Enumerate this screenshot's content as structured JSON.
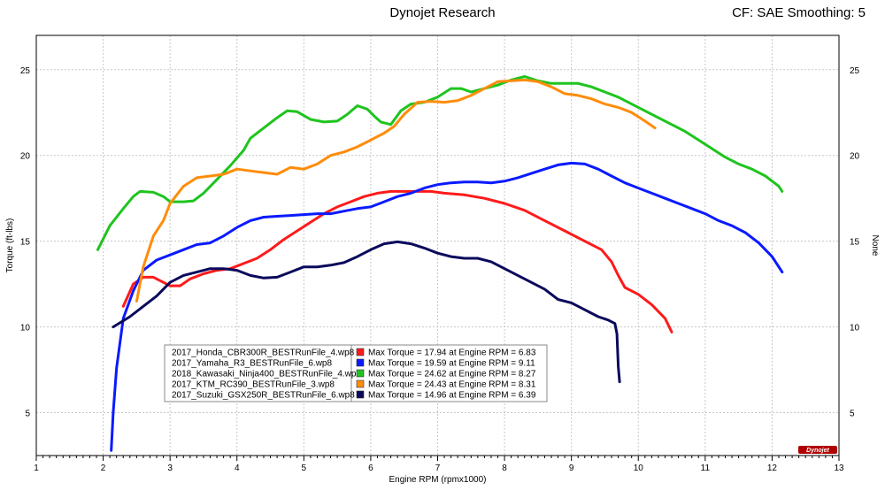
{
  "header": {
    "title": "Dynojet Research",
    "cf": "CF: SAE Smoothing: 5"
  },
  "chart_data": {
    "type": "line",
    "title": "Dynojet Research",
    "xlabel": "Engine RPM (rpmx1000)",
    "ylabel": "Torque (ft-lbs)",
    "y2label": "None",
    "xlim": [
      1,
      13
    ],
    "ylim": [
      2.5,
      27
    ],
    "x_ticks": [
      1,
      2,
      3,
      4,
      5,
      6,
      7,
      8,
      9,
      10,
      11,
      12,
      13
    ],
    "y_ticks": [
      5,
      10,
      15,
      20,
      25
    ],
    "grid": true,
    "legend_position": "bottom-left",
    "logo_text": "Dynojet",
    "series": [
      {
        "name": "2017_Honda_CBR300R_BESTRunFile_4.wp8",
        "color": "#ff1a1a",
        "max_text": "Max Torque = 17.94 at Engine RPM = 6.83",
        "points": [
          [
            2.3,
            11.2
          ],
          [
            2.45,
            12.5
          ],
          [
            2.6,
            12.9
          ],
          [
            2.75,
            12.9
          ],
          [
            2.9,
            12.6
          ],
          [
            3.0,
            12.4
          ],
          [
            3.15,
            12.4
          ],
          [
            3.3,
            12.8
          ],
          [
            3.5,
            13.1
          ],
          [
            3.7,
            13.3
          ],
          [
            3.9,
            13.4
          ],
          [
            4.1,
            13.7
          ],
          [
            4.3,
            14.0
          ],
          [
            4.5,
            14.5
          ],
          [
            4.7,
            15.1
          ],
          [
            4.9,
            15.6
          ],
          [
            5.1,
            16.1
          ],
          [
            5.3,
            16.6
          ],
          [
            5.5,
            17.0
          ],
          [
            5.7,
            17.3
          ],
          [
            5.9,
            17.6
          ],
          [
            6.1,
            17.8
          ],
          [
            6.3,
            17.9
          ],
          [
            6.5,
            17.9
          ],
          [
            6.7,
            17.9
          ],
          [
            6.9,
            17.9
          ],
          [
            7.1,
            17.8
          ],
          [
            7.4,
            17.7
          ],
          [
            7.7,
            17.5
          ],
          [
            8.0,
            17.2
          ],
          [
            8.3,
            16.8
          ],
          [
            8.6,
            16.2
          ],
          [
            8.9,
            15.6
          ],
          [
            9.2,
            15.0
          ],
          [
            9.45,
            14.5
          ],
          [
            9.6,
            13.8
          ],
          [
            9.7,
            13.0
          ],
          [
            9.8,
            12.3
          ],
          [
            10.0,
            11.9
          ],
          [
            10.2,
            11.3
          ],
          [
            10.4,
            10.5
          ],
          [
            10.5,
            9.7
          ]
        ]
      },
      {
        "name": "2017_Yamaha_R3_BESTRunFile_6.wp8",
        "color": "#0a1aff",
        "max_text": "Max Torque = 19.59 at Engine RPM = 9.11",
        "points": [
          [
            2.12,
            2.8
          ],
          [
            2.15,
            5.0
          ],
          [
            2.2,
            7.6
          ],
          [
            2.3,
            10.5
          ],
          [
            2.45,
            12.1
          ],
          [
            2.6,
            13.3
          ],
          [
            2.8,
            13.9
          ],
          [
            3.0,
            14.2
          ],
          [
            3.2,
            14.5
          ],
          [
            3.4,
            14.8
          ],
          [
            3.6,
            14.9
          ],
          [
            3.8,
            15.3
          ],
          [
            4.0,
            15.8
          ],
          [
            4.2,
            16.2
          ],
          [
            4.4,
            16.4
          ],
          [
            4.6,
            16.45
          ],
          [
            4.8,
            16.5
          ],
          [
            5.0,
            16.55
          ],
          [
            5.2,
            16.6
          ],
          [
            5.4,
            16.6
          ],
          [
            5.6,
            16.75
          ],
          [
            5.8,
            16.9
          ],
          [
            6.0,
            17.0
          ],
          [
            6.2,
            17.3
          ],
          [
            6.4,
            17.6
          ],
          [
            6.6,
            17.8
          ],
          [
            6.8,
            18.1
          ],
          [
            7.0,
            18.3
          ],
          [
            7.2,
            18.4
          ],
          [
            7.4,
            18.45
          ],
          [
            7.6,
            18.45
          ],
          [
            7.8,
            18.4
          ],
          [
            8.0,
            18.5
          ],
          [
            8.2,
            18.7
          ],
          [
            8.4,
            18.95
          ],
          [
            8.6,
            19.2
          ],
          [
            8.8,
            19.45
          ],
          [
            9.0,
            19.55
          ],
          [
            9.2,
            19.5
          ],
          [
            9.4,
            19.2
          ],
          [
            9.6,
            18.8
          ],
          [
            9.8,
            18.4
          ],
          [
            10.0,
            18.1
          ],
          [
            10.2,
            17.8
          ],
          [
            10.4,
            17.5
          ],
          [
            10.6,
            17.2
          ],
          [
            10.8,
            16.9
          ],
          [
            11.0,
            16.6
          ],
          [
            11.2,
            16.2
          ],
          [
            11.4,
            15.9
          ],
          [
            11.6,
            15.5
          ],
          [
            11.8,
            14.9
          ],
          [
            12.0,
            14.1
          ],
          [
            12.15,
            13.2
          ]
        ]
      },
      {
        "name": "2018_Kawasaki_Ninja400_BESTRunFile_4.wp8",
        "color": "#1ec41e",
        "max_text": "Max Torque = 24.62 at Engine RPM = 8.27",
        "points": [
          [
            1.92,
            14.5
          ],
          [
            2.1,
            15.9
          ],
          [
            2.3,
            16.9
          ],
          [
            2.45,
            17.6
          ],
          [
            2.55,
            17.9
          ],
          [
            2.75,
            17.85
          ],
          [
            2.9,
            17.6
          ],
          [
            3.0,
            17.3
          ],
          [
            3.2,
            17.3
          ],
          [
            3.35,
            17.35
          ],
          [
            3.5,
            17.8
          ],
          [
            3.7,
            18.6
          ],
          [
            3.9,
            19.4
          ],
          [
            4.1,
            20.3
          ],
          [
            4.2,
            21.0
          ],
          [
            4.4,
            21.6
          ],
          [
            4.6,
            22.2
          ],
          [
            4.75,
            22.6
          ],
          [
            4.9,
            22.55
          ],
          [
            5.1,
            22.1
          ],
          [
            5.3,
            21.95
          ],
          [
            5.5,
            22.0
          ],
          [
            5.65,
            22.4
          ],
          [
            5.8,
            22.9
          ],
          [
            5.95,
            22.7
          ],
          [
            6.05,
            22.3
          ],
          [
            6.15,
            21.95
          ],
          [
            6.3,
            21.8
          ],
          [
            6.45,
            22.6
          ],
          [
            6.6,
            23.0
          ],
          [
            6.8,
            23.1
          ],
          [
            7.0,
            23.4
          ],
          [
            7.2,
            23.9
          ],
          [
            7.35,
            23.9
          ],
          [
            7.5,
            23.7
          ],
          [
            7.7,
            23.9
          ],
          [
            7.9,
            24.1
          ],
          [
            8.1,
            24.4
          ],
          [
            8.3,
            24.6
          ],
          [
            8.5,
            24.35
          ],
          [
            8.7,
            24.2
          ],
          [
            8.9,
            24.2
          ],
          [
            9.1,
            24.2
          ],
          [
            9.3,
            24.0
          ],
          [
            9.5,
            23.7
          ],
          [
            9.7,
            23.4
          ],
          [
            9.9,
            23.0
          ],
          [
            10.1,
            22.6
          ],
          [
            10.3,
            22.2
          ],
          [
            10.5,
            21.8
          ],
          [
            10.7,
            21.4
          ],
          [
            10.9,
            20.9
          ],
          [
            11.1,
            20.4
          ],
          [
            11.3,
            19.9
          ],
          [
            11.5,
            19.5
          ],
          [
            11.7,
            19.2
          ],
          [
            11.9,
            18.8
          ],
          [
            12.1,
            18.2
          ],
          [
            12.15,
            17.9
          ]
        ]
      },
      {
        "name": "2017_KTM_RC390_BESTRunFile_3.wp8",
        "color": "#ff8c0a",
        "max_text": "Max Torque = 24.43 at Engine RPM = 8.31",
        "points": [
          [
            2.5,
            11.5
          ],
          [
            2.6,
            13.5
          ],
          [
            2.75,
            15.3
          ],
          [
            2.9,
            16.2
          ],
          [
            3.0,
            17.2
          ],
          [
            3.2,
            18.2
          ],
          [
            3.4,
            18.7
          ],
          [
            3.6,
            18.8
          ],
          [
            3.8,
            18.9
          ],
          [
            4.0,
            19.2
          ],
          [
            4.2,
            19.1
          ],
          [
            4.4,
            19.0
          ],
          [
            4.6,
            18.9
          ],
          [
            4.8,
            19.3
          ],
          [
            5.0,
            19.2
          ],
          [
            5.2,
            19.5
          ],
          [
            5.4,
            20.0
          ],
          [
            5.6,
            20.2
          ],
          [
            5.8,
            20.5
          ],
          [
            6.0,
            20.9
          ],
          [
            6.2,
            21.3
          ],
          [
            6.35,
            21.7
          ],
          [
            6.5,
            22.4
          ],
          [
            6.7,
            23.1
          ],
          [
            6.9,
            23.15
          ],
          [
            7.1,
            23.1
          ],
          [
            7.3,
            23.2
          ],
          [
            7.5,
            23.5
          ],
          [
            7.7,
            23.9
          ],
          [
            7.9,
            24.3
          ],
          [
            8.1,
            24.35
          ],
          [
            8.3,
            24.4
          ],
          [
            8.5,
            24.3
          ],
          [
            8.7,
            24.0
          ],
          [
            8.9,
            23.6
          ],
          [
            9.1,
            23.5
          ],
          [
            9.3,
            23.3
          ],
          [
            9.5,
            23.0
          ],
          [
            9.7,
            22.8
          ],
          [
            9.9,
            22.5
          ],
          [
            10.1,
            22.0
          ],
          [
            10.25,
            21.6
          ]
        ]
      },
      {
        "name": "2017_Suzuki_GSX250R_BESTRunFile_6.wp8",
        "color": "#0a0a5c",
        "max_text": "Max Torque = 14.96 at Engine RPM = 6.39",
        "points": [
          [
            2.15,
            10.0
          ],
          [
            2.4,
            10.6
          ],
          [
            2.6,
            11.2
          ],
          [
            2.8,
            11.8
          ],
          [
            3.0,
            12.6
          ],
          [
            3.2,
            13.0
          ],
          [
            3.4,
            13.2
          ],
          [
            3.6,
            13.4
          ],
          [
            3.8,
            13.4
          ],
          [
            4.0,
            13.3
          ],
          [
            4.2,
            13.0
          ],
          [
            4.4,
            12.85
          ],
          [
            4.6,
            12.9
          ],
          [
            4.8,
            13.2
          ],
          [
            5.0,
            13.5
          ],
          [
            5.2,
            13.5
          ],
          [
            5.4,
            13.6
          ],
          [
            5.6,
            13.75
          ],
          [
            5.8,
            14.1
          ],
          [
            6.0,
            14.5
          ],
          [
            6.2,
            14.85
          ],
          [
            6.4,
            14.96
          ],
          [
            6.6,
            14.85
          ],
          [
            6.8,
            14.6
          ],
          [
            7.0,
            14.3
          ],
          [
            7.2,
            14.1
          ],
          [
            7.4,
            14.0
          ],
          [
            7.6,
            14.0
          ],
          [
            7.8,
            13.8
          ],
          [
            8.0,
            13.4
          ],
          [
            8.2,
            13.0
          ],
          [
            8.4,
            12.6
          ],
          [
            8.6,
            12.2
          ],
          [
            8.8,
            11.6
          ],
          [
            9.0,
            11.4
          ],
          [
            9.2,
            11.0
          ],
          [
            9.4,
            10.6
          ],
          [
            9.55,
            10.4
          ],
          [
            9.65,
            10.2
          ],
          [
            9.68,
            9.6
          ],
          [
            9.7,
            7.7
          ],
          [
            9.72,
            6.8
          ]
        ]
      }
    ]
  }
}
